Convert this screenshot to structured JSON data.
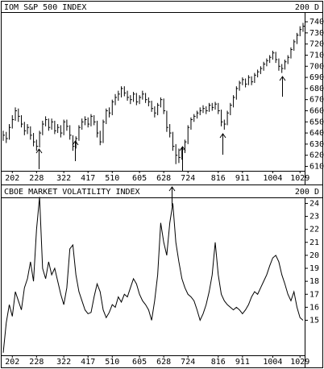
{
  "chart_data": [
    {
      "type": "ohlc",
      "title": "IOM S&P 500 INDEX",
      "subtitle": "200 D",
      "xlim": [
        0,
        99
      ],
      "xticks": [
        {
          "value": 3,
          "label": "202"
        },
        {
          "value": 11,
          "label": "228"
        },
        {
          "value": 20,
          "label": "322"
        },
        {
          "value": 28,
          "label": "417"
        },
        {
          "value": 36,
          "label": "510"
        },
        {
          "value": 45,
          "label": "605"
        },
        {
          "value": 53,
          "label": "628"
        },
        {
          "value": 61,
          "label": "724"
        },
        {
          "value": 71,
          "label": "816"
        },
        {
          "value": 79,
          "label": "911"
        },
        {
          "value": 89,
          "label": "1004"
        },
        {
          "value": 98,
          "label": "1029"
        }
      ],
      "ylim": [
        606,
        748
      ],
      "yticks": [
        610,
        620,
        630,
        640,
        650,
        660,
        670,
        680,
        690,
        700,
        710,
        720,
        730,
        740
      ],
      "color": "#000000",
      "high": [
        642,
        641,
        648,
        656,
        663,
        662,
        656,
        650,
        648,
        646,
        640,
        634,
        642,
        651,
        655,
        653,
        653,
        651,
        648,
        647,
        652,
        652,
        647,
        638,
        637,
        647,
        653,
        655,
        654,
        657,
        656,
        651,
        642,
        652,
        662,
        663,
        670,
        675,
        678,
        682,
        682,
        678,
        674,
        677,
        676,
        674,
        678,
        676,
        672,
        669,
        664,
        667,
        672,
        671,
        660,
        648,
        641,
        630,
        626,
        627,
        634,
        647,
        654,
        657,
        660,
        663,
        665,
        664,
        667,
        667,
        668,
        667,
        661,
        652,
        660,
        667,
        674,
        682,
        687,
        690,
        689,
        692,
        691,
        694,
        697,
        700,
        704,
        707,
        710,
        714,
        713,
        707,
        702,
        706,
        710,
        717,
        724,
        730,
        736,
        739
      ],
      "low": [
        633,
        631,
        634,
        644,
        651,
        650,
        645,
        638,
        639,
        634,
        628,
        624,
        627,
        638,
        646,
        642,
        643,
        639,
        640,
        636,
        638,
        642,
        634,
        624,
        626,
        633,
        643,
        647,
        645,
        646,
        647,
        636,
        629,
        631,
        648,
        654,
        656,
        665,
        669,
        672,
        673,
        669,
        666,
        668,
        665,
        666,
        670,
        667,
        664,
        659,
        654,
        656,
        663,
        657,
        641,
        636,
        624,
        612,
        613,
        616,
        622,
        630,
        643,
        650,
        653,
        656,
        658,
        657,
        659,
        660,
        661,
        657,
        646,
        643,
        647,
        656,
        663,
        670,
        678,
        683,
        681,
        683,
        683,
        685,
        690,
        693,
        696,
        700,
        703,
        706,
        703,
        696,
        694,
        697,
        702,
        707,
        714,
        720,
        727,
        731
      ],
      "close": [
        638,
        635,
        645,
        652,
        660,
        655,
        648,
        642,
        645,
        638,
        632,
        628,
        640,
        648,
        652,
        645,
        650,
        642,
        645,
        640,
        650,
        646,
        638,
        628,
        635,
        645,
        650,
        652,
        648,
        655,
        650,
        640,
        632,
        650,
        660,
        658,
        668,
        672,
        675,
        680,
        676,
        672,
        670,
        675,
        668,
        672,
        675,
        670,
        668,
        662,
        658,
        665,
        670,
        660,
        645,
        640,
        628,
        620,
        618,
        625,
        632,
        645,
        652,
        655,
        658,
        660,
        662,
        660,
        665,
        663,
        666,
        660,
        650,
        648,
        658,
        665,
        672,
        680,
        685,
        688,
        684,
        690,
        686,
        692,
        695,
        698,
        702,
        705,
        708,
        712,
        706,
        700,
        698,
        704,
        708,
        715,
        722,
        728,
        733,
        736
      ]
    },
    {
      "type": "line",
      "title": "CBOE MARKET VOLATILITY INDEX",
      "subtitle": "200 D",
      "xlim": [
        0,
        99
      ],
      "xticks": [
        {
          "value": 3,
          "label": "202"
        },
        {
          "value": 11,
          "label": "228"
        },
        {
          "value": 20,
          "label": "322"
        },
        {
          "value": 28,
          "label": "417"
        },
        {
          "value": 36,
          "label": "510"
        },
        {
          "value": 45,
          "label": "605"
        },
        {
          "value": 53,
          "label": "628"
        },
        {
          "value": 61,
          "label": "724"
        },
        {
          "value": 71,
          "label": "816"
        },
        {
          "value": 79,
          "label": "911"
        },
        {
          "value": 89,
          "label": "1004"
        },
        {
          "value": 98,
          "label": "1029"
        }
      ],
      "ylim": [
        12.3,
        24.4
      ],
      "yticks": [
        15,
        16,
        17,
        18,
        19,
        20,
        21,
        22,
        23,
        24
      ],
      "color": "#000000",
      "values": [
        12.5,
        14.8,
        16.2,
        15.3,
        17.2,
        16.5,
        15.8,
        17.5,
        18.2,
        19.5,
        18.0,
        22.0,
        24.5,
        19.0,
        18.2,
        19.5,
        18.5,
        19.0,
        18.0,
        17.0,
        16.2,
        17.5,
        20.5,
        20.8,
        18.5,
        17.2,
        16.5,
        15.8,
        15.5,
        15.6,
        16.8,
        17.8,
        17.2,
        15.8,
        15.2,
        15.6,
        16.2,
        16.0,
        16.8,
        16.4,
        17.0,
        16.8,
        17.5,
        18.2,
        17.8,
        17.0,
        16.5,
        16.2,
        15.8,
        15.0,
        16.5,
        18.5,
        22.5,
        21.0,
        20.0,
        22.5,
        24.0,
        21.0,
        19.5,
        18.2,
        17.5,
        17.0,
        16.8,
        16.5,
        15.8,
        15.0,
        15.5,
        16.2,
        17.2,
        18.5,
        21.0,
        18.5,
        17.0,
        16.5,
        16.2,
        16.0,
        15.8,
        16.0,
        15.8,
        15.5,
        15.8,
        16.2,
        16.8,
        17.2,
        17.0,
        17.5,
        18.0,
        18.5,
        19.2,
        19.8,
        20.0,
        19.5,
        18.5,
        17.8,
        17.0,
        16.5,
        17.2,
        16.0,
        15.2,
        15.0
      ]
    }
  ]
}
